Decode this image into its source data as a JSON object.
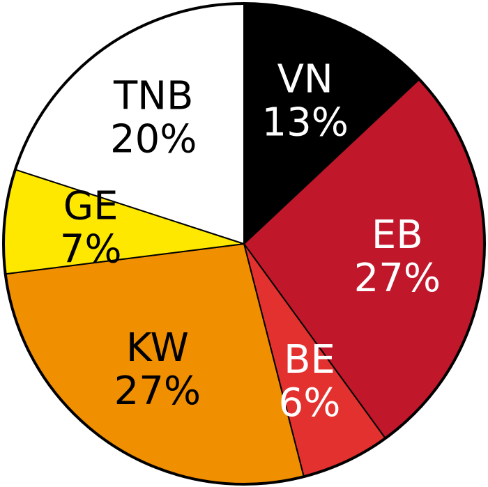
{
  "chart_data": {
    "type": "pie",
    "categories": [
      "VN",
      "EB",
      "BE",
      "KW",
      "GE",
      "TNB"
    ],
    "values": [
      13,
      27,
      6,
      27,
      7,
      20
    ],
    "value_labels": [
      "13%",
      "27%",
      "6%",
      "27%",
      "7%",
      "20%"
    ],
    "colors": [
      "#000000",
      "#c0172a",
      "#e3312f",
      "#f08f00",
      "#ffe800",
      "#ffffff"
    ]
  }
}
